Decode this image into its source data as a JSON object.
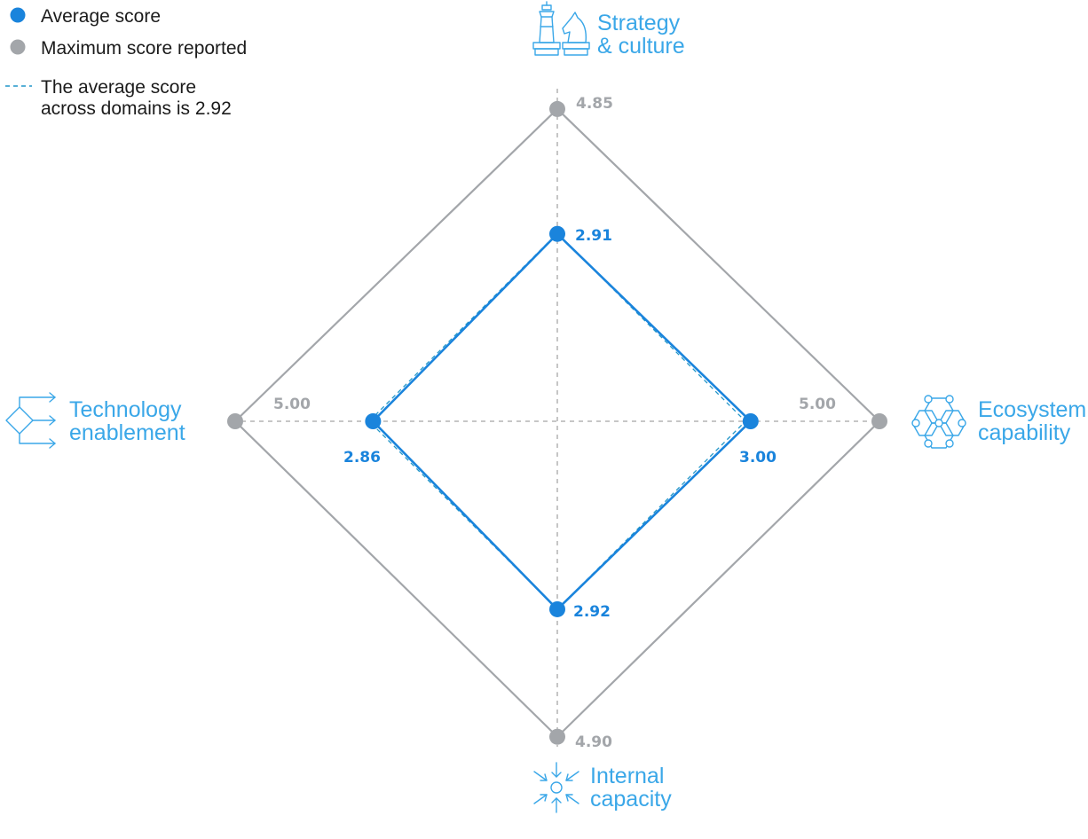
{
  "legend": {
    "average": "Average score",
    "maximum": "Maximum score reported",
    "overall_line1": "The average score",
    "overall_line2": "across domains is 2.92"
  },
  "colors": {
    "average": "#1a84dc",
    "maximum": "#a3a6aa",
    "overall": "#2196c8",
    "title": "#3aa7e8"
  },
  "axes": {
    "top": {
      "title_line1": "Strategy",
      "title_line2": "& culture",
      "icon": "chess-pieces-icon"
    },
    "right": {
      "title_line1": "Ecosystem",
      "title_line2": "capability",
      "icon": "hexagon-network-icon"
    },
    "bottom": {
      "title_line1": "Internal",
      "title_line2": "capacity",
      "icon": "inward-arrows-icon"
    },
    "left": {
      "title_line1": "Technology",
      "title_line2": "enablement",
      "icon": "branching-arrows-icon"
    }
  },
  "chart_data": {
    "type": "radar",
    "scale_max": 5,
    "axes": [
      "Strategy & culture",
      "Ecosystem capability",
      "Internal capacity",
      "Technology enablement"
    ],
    "series": [
      {
        "name": "Average score",
        "values": [
          2.91,
          3.0,
          2.92,
          2.86
        ]
      },
      {
        "name": "Maximum score reported",
        "values": [
          4.85,
          5.0,
          4.9,
          5.0
        ]
      }
    ],
    "overall_average": 2.92,
    "value_labels": {
      "average": [
        "2.91",
        "3.00",
        "2.92",
        "2.86"
      ],
      "maximum": [
        "4.85",
        "5.00",
        "4.90",
        "5.00"
      ]
    }
  }
}
